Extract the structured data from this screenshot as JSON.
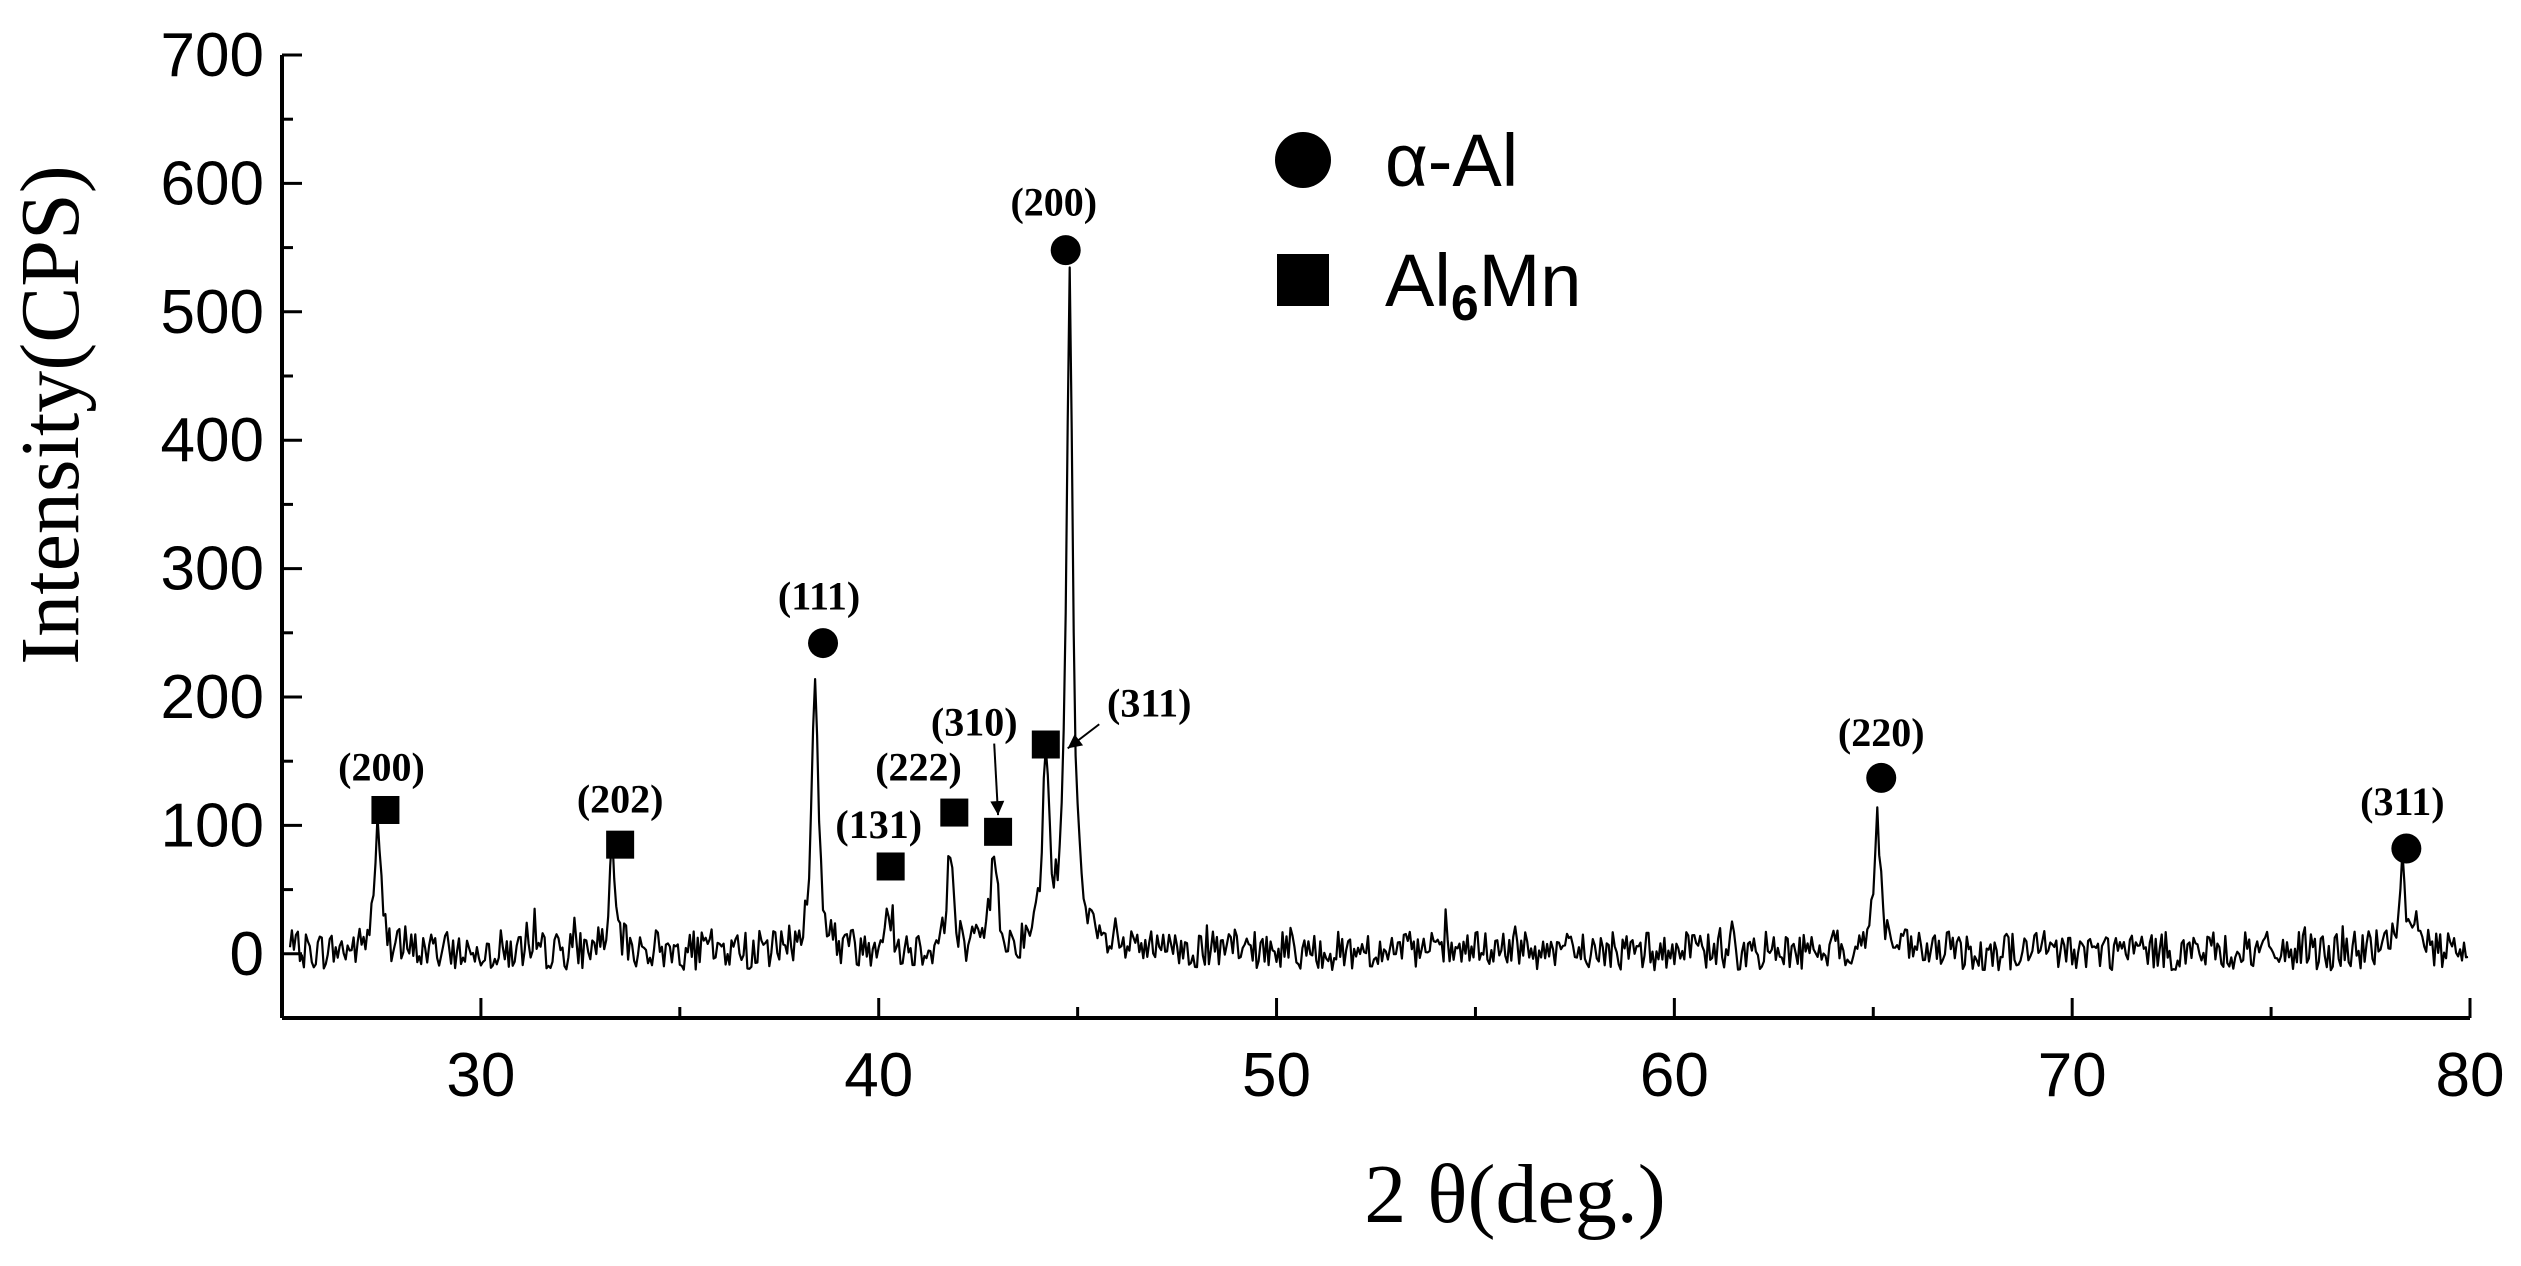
{
  "chart_data": {
    "type": "line",
    "xlabel": "2 θ(deg.)",
    "ylabel": "Intensity(CPS)",
    "xlim": [
      25,
      80
    ],
    "ylim": [
      -50,
      700
    ],
    "xticks": [
      30,
      40,
      50,
      60,
      70,
      80
    ],
    "yticks": [
      0,
      100,
      200,
      300,
      400,
      500,
      600,
      700
    ],
    "grid": false,
    "legend": {
      "placement": "top-center",
      "entries": [
        {
          "marker": "circle",
          "label": "α-Al",
          "label_main": "α-Al",
          "label_sub": "",
          "label_tail": ""
        },
        {
          "marker": "square",
          "label": "Al6Mn",
          "label_main": "Al",
          "label_sub": "6",
          "label_tail": "Mn"
        }
      ]
    },
    "peaks": [
      {
        "x": 27.4,
        "y": 95
      },
      {
        "x": 33.3,
        "y": 65
      },
      {
        "x": 38.4,
        "y": 210
      },
      {
        "x": 40.2,
        "y": 35
      },
      {
        "x": 41.8,
        "y": 75
      },
      {
        "x": 42.9,
        "y": 80
      },
      {
        "x": 44.2,
        "y": 140
      },
      {
        "x": 44.8,
        "y": 520
      },
      {
        "x": 65.1,
        "y": 105
      },
      {
        "x": 78.3,
        "y": 70
      }
    ],
    "annotations": [
      {
        "label": "(200)",
        "marker": "square",
        "x": 27.6,
        "y": 112,
        "label_x": 27.5,
        "label_y": 135
      },
      {
        "label": "(202)",
        "marker": "square",
        "x": 33.5,
        "y": 85,
        "label_x": 33.5,
        "label_y": 110
      },
      {
        "label": "(111)",
        "marker": "circle",
        "x": 38.6,
        "y": 242,
        "label_x": 38.5,
        "label_y": 268
      },
      {
        "label": "(131)",
        "marker": "square",
        "x": 40.3,
        "y": 68,
        "label_x": 40.0,
        "label_y": 90
      },
      {
        "label": "(222)",
        "marker": "square",
        "x": 41.9,
        "y": 110,
        "label_x": 41.0,
        "label_y": 135
      },
      {
        "label": "(310)",
        "marker": "square",
        "x": 43.0,
        "y": 95,
        "label_x": 42.4,
        "label_y": 170,
        "arrow_to": [
          43.0,
          108
        ]
      },
      {
        "label": "(311)",
        "marker": "square",
        "x": 44.2,
        "y": 163,
        "label_x": 46.8,
        "label_y": 185,
        "arrow_to": [
          44.75,
          160
        ]
      },
      {
        "label": "(200)",
        "marker": "circle",
        "x": 44.7,
        "y": 548,
        "label_x": 44.4,
        "label_y": 575
      },
      {
        "label": "(220)",
        "marker": "circle",
        "x": 65.2,
        "y": 137,
        "label_x": 65.2,
        "label_y": 162
      },
      {
        "label": "(311)",
        "marker": "circle",
        "x": 78.4,
        "y": 82,
        "label_x": 78.3,
        "label_y": 108
      }
    ]
  }
}
